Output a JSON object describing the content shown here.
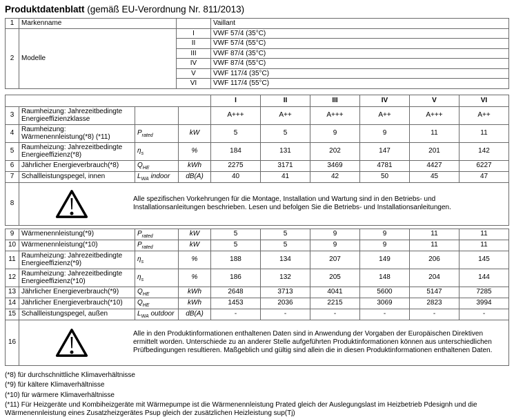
{
  "title": {
    "bold": "Produktdatenblatt",
    "normal": " (gemäß EU-Verordnung Nr. 811/2013)"
  },
  "info": {
    "row1": {
      "num": "1",
      "label": "Markenname",
      "roman": "",
      "value": "Vaillant"
    },
    "modelle": {
      "num": "2",
      "label": "Modelle",
      "entries": [
        {
          "roman": "I",
          "value": "VWF 57/4 (35°C)"
        },
        {
          "roman": "II",
          "value": "VWF 57/4 (55°C)"
        },
        {
          "roman": "III",
          "value": "VWF 87/4 (35°C)"
        },
        {
          "roman": "IV",
          "value": "VWF 87/4 (55°C)"
        },
        {
          "roman": "V",
          "value": "VWF 117/4 (35°C)"
        },
        {
          "roman": "VI",
          "value": "VWF 117/4 (55°C)"
        }
      ]
    }
  },
  "column_headers": [
    "I",
    "II",
    "III",
    "IV",
    "V",
    "VI"
  ],
  "section1": {
    "rows": [
      {
        "num": "3",
        "label": "Raumheizung: Jahrezeitbedingte Energieeffizienzklasse",
        "symbol": null,
        "unit": "",
        "values": [
          "A+++",
          "A++",
          "A+++",
          "A++",
          "A+++",
          "A++"
        ],
        "h": 25
      },
      {
        "num": "4",
        "label": "Raumheizung: Wärmenennleistung(*8) (*11)",
        "symbol": {
          "base": "P",
          "sub": "rated",
          "suffix": ""
        },
        "unit": "kW",
        "values": [
          "5",
          "5",
          "9",
          "9",
          "11",
          "11"
        ],
        "h": 26
      },
      {
        "num": "5",
        "label": "Raumheizung: Jahrezeitbedingte Energieeffizienz(*8)",
        "symbol": {
          "base": "η",
          "sub": "s",
          "suffix": ""
        },
        "unit": "%",
        "values": [
          "184",
          "131",
          "202",
          "147",
          "201",
          "142"
        ],
        "h": 26
      },
      {
        "num": "6",
        "label": "Jährlicher Energieverbrauch(*8)",
        "symbol": {
          "base": "Q",
          "sub": "HE",
          "suffix": ""
        },
        "unit": "kWh",
        "values": [
          "2275",
          "3171",
          "3469",
          "4781",
          "4427",
          "6227"
        ],
        "h": 16
      },
      {
        "num": "7",
        "label": "Schallleistungspegel, innen",
        "symbol": {
          "base": "L",
          "sub": "WA",
          "suffix": "indoor"
        },
        "unit": "dB(A)",
        "values": [
          "40",
          "41",
          "42",
          "50",
          "45",
          "47"
        ],
        "h": 16
      }
    ],
    "warning": {
      "num": "8",
      "text": "Alle spezifischen Vorkehrungen für die Montage, Installation und Wartung sind in den Betriebs- und Installationsanleitungen beschrieben. Lesen und befolgen Sie die Betriebs- und Installationsanleitungen.",
      "h": 62
    }
  },
  "section2": {
    "rows": [
      {
        "num": "9",
        "label": "Wärmenennleistung(*9)",
        "symbol": {
          "base": "P",
          "sub": "rated",
          "suffix": ""
        },
        "unit": "kW",
        "values": [
          "5",
          "5",
          "9",
          "9",
          "11",
          "11"
        ],
        "h": 16
      },
      {
        "num": "10",
        "label": "Wärmenennleistung(*10)",
        "symbol": {
          "base": "P",
          "sub": "rated",
          "suffix": ""
        },
        "unit": "kW",
        "values": [
          "5",
          "5",
          "9",
          "9",
          "11",
          "11"
        ],
        "h": 16
      },
      {
        "num": "11",
        "label": "Raumheizung: Jahrezeitbedingte Energieeffizienz(*9)",
        "symbol": {
          "base": "η",
          "sub": "s",
          "suffix": ""
        },
        "unit": "%",
        "values": [
          "188",
          "134",
          "207",
          "149",
          "206",
          "145"
        ],
        "h": 26
      },
      {
        "num": "12",
        "label": "Raumheizung: Jahrezeitbedingte Energieeffizienz(*10)",
        "symbol": {
          "base": "η",
          "sub": "s",
          "suffix": ""
        },
        "unit": "%",
        "values": [
          "186",
          "132",
          "205",
          "148",
          "204",
          "144"
        ],
        "h": 26
      },
      {
        "num": "13",
        "label": "Jährlicher Energieverbrauch(*9)",
        "symbol": {
          "base": "Q",
          "sub": "HE",
          "suffix": ""
        },
        "unit": "kWh",
        "values": [
          "2648",
          "3713",
          "4041",
          "5600",
          "5147",
          "7285"
        ],
        "h": 16
      },
      {
        "num": "14",
        "label": "Jährlicher Energieverbrauch(*10)",
        "symbol": {
          "base": "Q",
          "sub": "HE",
          "suffix": ""
        },
        "unit": "kWh",
        "values": [
          "1453",
          "2036",
          "2215",
          "3069",
          "2823",
          "3994"
        ],
        "h": 16
      },
      {
        "num": "15",
        "label": "Schallleistungspegel, außen",
        "symbol": {
          "base": "L",
          "sub": "WA",
          "suffix": "outdoor"
        },
        "unit": "dB(A)",
        "values": [
          "-",
          "-",
          "-",
          "-",
          "-",
          "-"
        ],
        "h": 16
      }
    ],
    "warning": {
      "num": "16",
      "text": "Alle in den Produktinformationen enthaltenen Daten sind in Anwendung der Vorgaben der Europäischen Direktiven ermittelt worden. Unterschiede zu an anderer Stelle aufgeführten Produktinformationen können aus unterschiedlichen Prüfbedingungen resultieren. Maßgeblich und gültig sind allein die in diesen Produktinformationen enthaltenen Daten.",
      "h": 66
    }
  },
  "footnotes": [
    "(*8) für durchschnittliche Klimaverhältnisse",
    "(*9) für kältere Klimaverhältnisse",
    "(*10) für wärmere Klimaverhältnisse",
    "(*11) Für Heizgeräte und Kombiheizgeräte mit Wärmepumpe ist die Wärmenennleistung Prated gleich der Auslegungslast im Heizbetrieb Pdesignh und die Wärmenennleistung eines Zusatzheizgerätes Psup gleich der zusätzlichen Heizleistung sup(Tj)"
  ]
}
